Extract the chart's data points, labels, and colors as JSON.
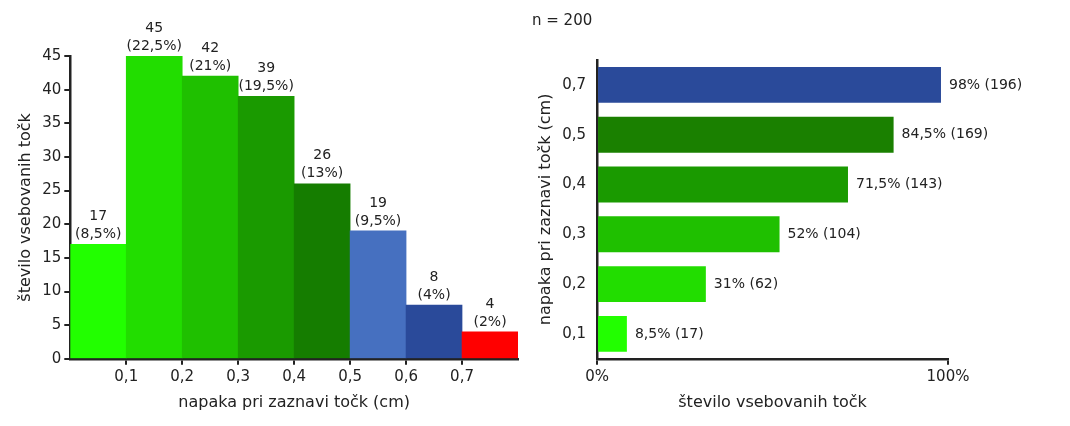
{
  "chart_data": [
    {
      "type": "histogram",
      "bins": [
        0,
        0.1,
        0.2,
        0.3,
        0.4,
        0.5,
        0.6,
        0.7,
        0.8
      ],
      "values": [
        17,
        45,
        42,
        39,
        26,
        19,
        8,
        4
      ],
      "colors": [
        "#22ff00",
        "#22dd00",
        "#1fc000",
        "#1a9a00",
        "#157d00",
        "#4670c0",
        "#2a4a9a",
        "#ff0000"
      ],
      "value_labels": [
        "17\n(8,5%)",
        "45\n(22,5%)",
        "42\n(21%)",
        "39\n(19,5%)",
        "26\n(13%)",
        "19\n(9,5%)",
        "8\n(4%)",
        "4\n(2%)"
      ],
      "xlabel": "napaka pri zaznavi točk (cm)",
      "ylabel": "število vsebovanih točk",
      "xlim": [
        0,
        0.8
      ],
      "xticks": [
        {
          "value": 0.1,
          "label": "0,1"
        },
        {
          "value": 0.2,
          "label": "0,2"
        },
        {
          "value": 0.3,
          "label": "0,3"
        },
        {
          "value": 0.4,
          "label": "0,4"
        },
        {
          "value": 0.5,
          "label": "0,5"
        },
        {
          "value": 0.6,
          "label": "0,6"
        },
        {
          "value": 0.7,
          "label": "0,7"
        }
      ],
      "ylim": [
        0,
        45
      ],
      "yticks": [
        0,
        5,
        10,
        15,
        20,
        25,
        30,
        35,
        40,
        45
      ],
      "grid": false,
      "legend": false
    },
    {
      "type": "bar",
      "orientation": "horizontal",
      "title": "n = 200",
      "categories": [
        "0,7",
        "0,5",
        "0,4",
        "0,3",
        "0,2",
        "0,1"
      ],
      "values": [
        98,
        84.5,
        71.5,
        52,
        31,
        8.5
      ],
      "colors": [
        "#2a4a9a",
        "#1a8000",
        "#1a9a00",
        "#1fc000",
        "#22dd00",
        "#22ff00"
      ],
      "value_labels": [
        "98% (196)",
        "84,5% (169)",
        "71,5% (143)",
        "52% (104)",
        "31% (62)",
        "8,5% (17)"
      ],
      "xlabel": "število vsebovanih točk",
      "ylabel": "napaka pri zaznavi točk (cm)",
      "xlim": [
        0,
        100
      ],
      "xticks": [
        {
          "value": 0,
          "label": "0%"
        },
        {
          "value": 100,
          "label": "100%"
        }
      ],
      "grid": false,
      "legend": false
    }
  ]
}
